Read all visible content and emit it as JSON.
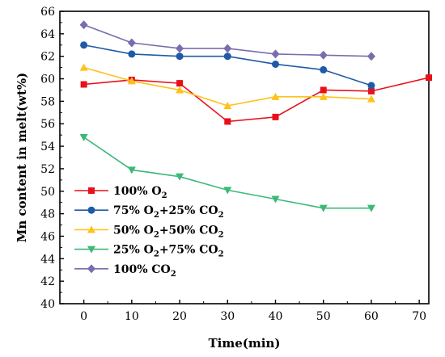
{
  "chart_data": {
    "type": "line",
    "title": "",
    "xlabel": "Time(min)",
    "ylabel": "Mn content in melt(wt%)",
    "xlim": [
      -5,
      72
    ],
    "ylim": [
      40,
      66
    ],
    "x_ticks": [
      0,
      10,
      20,
      30,
      40,
      50,
      60,
      70
    ],
    "y_ticks": [
      40,
      42,
      44,
      46,
      48,
      50,
      52,
      54,
      56,
      58,
      60,
      62,
      64,
      66
    ],
    "grid": false,
    "legend_position": "bottom-left",
    "series": [
      {
        "name": "100% O2",
        "legend_main": "100% O",
        "legend_sub": "2",
        "legend_rest": "",
        "marker": "square",
        "color": "#e8101a",
        "x": [
          0,
          10,
          20,
          30,
          40,
          50,
          60,
          72
        ],
        "values": [
          59.5,
          59.9,
          59.6,
          56.2,
          56.6,
          59.0,
          58.9,
          60.1
        ]
      },
      {
        "name": "75% O2+25% CO2",
        "legend_main": "75% O",
        "legend_sub": "2",
        "legend_rest": "+25% CO",
        "legend_sub2": "2",
        "marker": "circle",
        "color": "#1f5aa8",
        "x": [
          0,
          10,
          20,
          30,
          40,
          50,
          60
        ],
        "values": [
          63.0,
          62.2,
          62.0,
          62.0,
          61.3,
          60.8,
          59.4
        ]
      },
      {
        "name": "50% O2+50% CO2",
        "legend_main": "50% O",
        "legend_sub": "2",
        "legend_rest": "+50% CO",
        "legend_sub2": "2",
        "marker": "triangle-up",
        "color": "#ffc21a",
        "x": [
          0,
          10,
          20,
          30,
          40,
          50,
          60
        ],
        "values": [
          61.0,
          59.8,
          59.0,
          57.6,
          58.4,
          58.4,
          58.2
        ]
      },
      {
        "name": "25% O2+75% CO2",
        "legend_main": "25% O",
        "legend_sub": "2",
        "legend_rest": "+75% CO",
        "legend_sub2": "2",
        "marker": "triangle-down",
        "color": "#3cb878",
        "x": [
          0,
          10,
          20,
          30,
          40,
          50,
          60
        ],
        "values": [
          54.8,
          51.9,
          51.3,
          50.1,
          49.3,
          48.5,
          48.5
        ]
      },
      {
        "name": "100% CO2",
        "legend_main": "100% CO",
        "legend_sub": "2",
        "legend_rest": "",
        "marker": "diamond",
        "color": "#7a6cad",
        "x": [
          0,
          10,
          20,
          30,
          40,
          50,
          60
        ],
        "values": [
          64.8,
          63.2,
          62.7,
          62.7,
          62.2,
          62.1,
          62.0
        ]
      }
    ]
  }
}
